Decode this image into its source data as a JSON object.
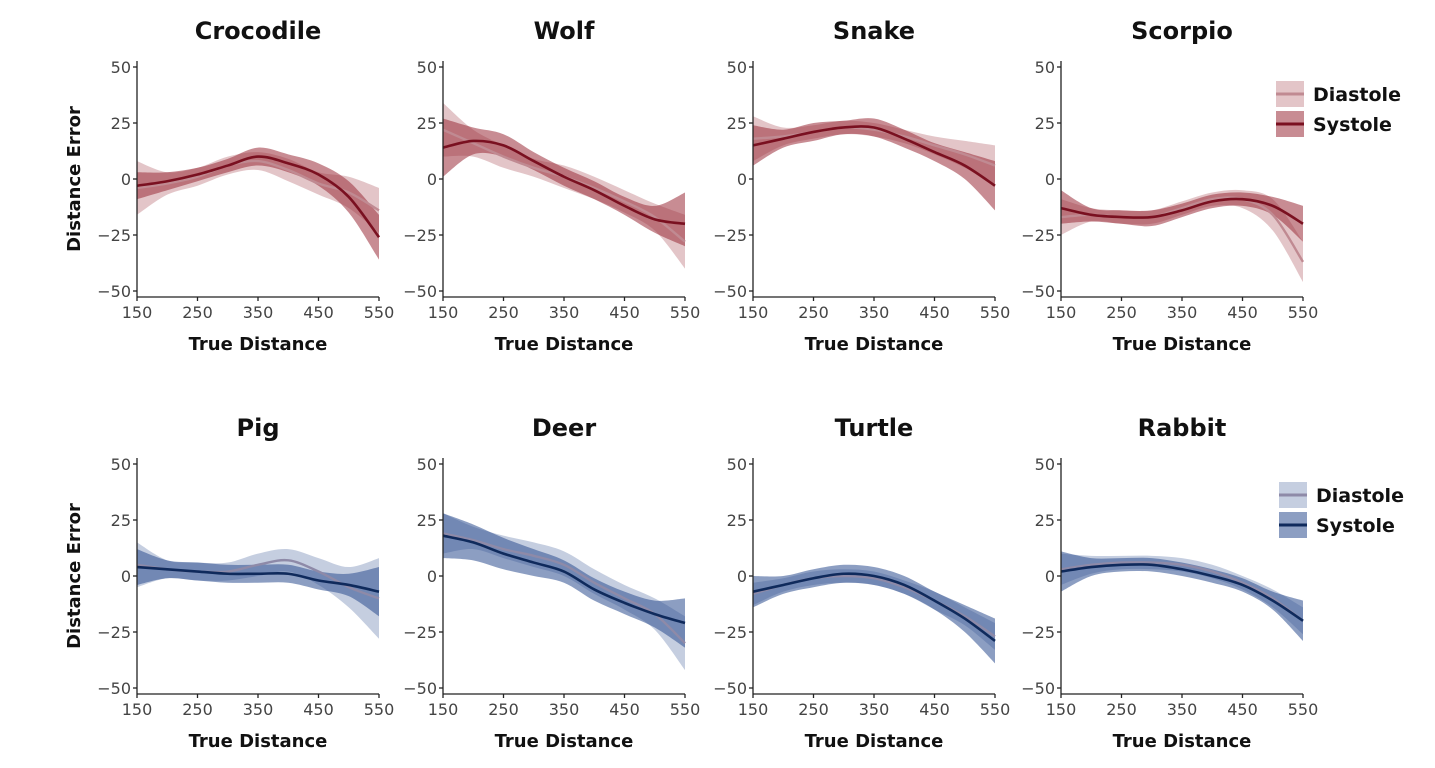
{
  "colors": {
    "red_systole_line": "#7a1020",
    "red_diastole_line": "#c08a92",
    "red_band": "#9b2e3a",
    "blue_systole_line": "#0f2a5c",
    "blue_diastole_line": "#8e8aa8",
    "blue_band": "#2e4f8f"
  },
  "legends": [
    {
      "row": 0,
      "palette": "red",
      "entries": [
        "Diastole",
        "Systole"
      ]
    },
    {
      "row": 1,
      "palette": "blue",
      "entries": [
        "Diastole",
        "Systole"
      ]
    }
  ],
  "chart_data": [
    {
      "type": "line",
      "title": "Crocodile",
      "row": 0,
      "palette": "red",
      "xlabel": "True Distance",
      "ylabel": "Distance Error",
      "xlim": [
        150,
        550
      ],
      "ylim": [
        -50,
        50
      ],
      "xticks": [
        150,
        250,
        350,
        450,
        550
      ],
      "yticks": [
        50,
        25,
        0,
        -25,
        -50
      ],
      "x": [
        150,
        200,
        250,
        300,
        350,
        400,
        450,
        500,
        550
      ],
      "series": [
        {
          "name": "Diastole",
          "mean": [
            -4,
            -2,
            1,
            6,
            8,
            4,
            -2,
            -6,
            -14
          ],
          "lower": [
            -16,
            -7,
            -3,
            2,
            4,
            -1,
            -7,
            -13,
            -24
          ],
          "upper": [
            8,
            3,
            5,
            10,
            12,
            9,
            3,
            1,
            -4
          ]
        },
        {
          "name": "Systole",
          "mean": [
            -3,
            -1,
            2,
            6,
            10,
            7,
            2,
            -8,
            -26
          ],
          "lower": [
            -9,
            -5,
            -1,
            3,
            6,
            3,
            -3,
            -15,
            -36
          ],
          "upper": [
            3,
            3,
            5,
            9,
            14,
            11,
            7,
            -1,
            -16
          ]
        }
      ]
    },
    {
      "type": "line",
      "title": "Wolf",
      "row": 0,
      "palette": "red",
      "xlabel": "True Distance",
      "ylabel": "",
      "xlim": [
        150,
        550
      ],
      "ylim": [
        -50,
        50
      ],
      "xticks": [
        150,
        250,
        350,
        450,
        550
      ],
      "yticks": [
        50,
        25,
        0,
        -25,
        -50
      ],
      "x": [
        150,
        200,
        250,
        300,
        350,
        400,
        450,
        500,
        550
      ],
      "series": [
        {
          "name": "Diastole",
          "mean": [
            22,
            16,
            10,
            5,
            1,
            -4,
            -10,
            -17,
            -28
          ],
          "lower": [
            10,
            10,
            5,
            1,
            -4,
            -9,
            -15,
            -23,
            -40
          ],
          "upper": [
            34,
            22,
            15,
            9,
            6,
            1,
            -5,
            -11,
            -16
          ]
        },
        {
          "name": "Systole",
          "mean": [
            14,
            17,
            15,
            8,
            1,
            -5,
            -12,
            -18,
            -20
          ],
          "lower": [
            1,
            11,
            10,
            4,
            -3,
            -9,
            -16,
            -24,
            -30
          ],
          "upper": [
            27,
            23,
            20,
            12,
            5,
            -1,
            -8,
            -12,
            -6
          ]
        }
      ]
    },
    {
      "type": "line",
      "title": "Snake",
      "row": 0,
      "palette": "red",
      "xlabel": "True Distance",
      "ylabel": "",
      "xlim": [
        150,
        550
      ],
      "ylim": [
        -50,
        50
      ],
      "xticks": [
        150,
        250,
        350,
        450,
        550
      ],
      "yticks": [
        50,
        25,
        0,
        -25,
        -50
      ],
      "x": [
        150,
        200,
        250,
        300,
        350,
        400,
        450,
        500,
        550
      ],
      "series": [
        {
          "name": "Diastole",
          "mean": [
            18,
            19,
            21,
            23,
            22,
            19,
            15,
            11,
            6
          ],
          "lower": [
            8,
            15,
            18,
            20,
            19,
            16,
            11,
            5,
            -3
          ],
          "upper": [
            28,
            23,
            24,
            26,
            25,
            22,
            19,
            17,
            15
          ]
        },
        {
          "name": "Systole",
          "mean": [
            15,
            18,
            21,
            23,
            23,
            18,
            12,
            6,
            -3
          ],
          "lower": [
            6,
            14,
            17,
            20,
            19,
            14,
            8,
            0,
            -14
          ],
          "upper": [
            24,
            22,
            25,
            26,
            27,
            22,
            16,
            12,
            8
          ]
        }
      ]
    },
    {
      "type": "line",
      "title": "Scorpio",
      "row": 0,
      "palette": "red",
      "xlabel": "True Distance",
      "ylabel": "",
      "xlim": [
        150,
        550
      ],
      "ylim": [
        -50,
        50
      ],
      "xticks": [
        150,
        250,
        350,
        450,
        550
      ],
      "yticks": [
        50,
        25,
        0,
        -25,
        -50
      ],
      "x": [
        150,
        200,
        250,
        300,
        350,
        400,
        450,
        500,
        550
      ],
      "series": [
        {
          "name": "Diastole",
          "mean": [
            -17,
            -16,
            -17,
            -17,
            -13,
            -9,
            -9,
            -16,
            -37
          ],
          "lower": [
            -25,
            -19,
            -20,
            -20,
            -16,
            -12,
            -13,
            -23,
            -46
          ],
          "upper": [
            -9,
            -13,
            -14,
            -14,
            -10,
            -6,
            -5,
            -9,
            -28
          ]
        },
        {
          "name": "Systole",
          "mean": [
            -13,
            -16,
            -17,
            -17,
            -14,
            -10,
            -9,
            -12,
            -20
          ],
          "lower": [
            -20,
            -19,
            -20,
            -21,
            -17,
            -13,
            -12,
            -16,
            -28
          ],
          "upper": [
            -5,
            -13,
            -14,
            -14,
            -11,
            -7,
            -6,
            -8,
            -12
          ]
        }
      ]
    },
    {
      "type": "line",
      "title": "Pig",
      "row": 1,
      "palette": "blue",
      "xlabel": "True Distance",
      "ylabel": "Distance Error",
      "xlim": [
        150,
        550
      ],
      "ylim": [
        -50,
        50
      ],
      "xticks": [
        150,
        250,
        350,
        450,
        550
      ],
      "yticks": [
        50,
        25,
        0,
        -25,
        -50
      ],
      "x": [
        150,
        200,
        250,
        300,
        350,
        400,
        450,
        500,
        550
      ],
      "series": [
        {
          "name": "Diastole",
          "mean": [
            5,
            3,
            2,
            2,
            5,
            7,
            2,
            -5,
            -10
          ],
          "lower": [
            -5,
            -1,
            -2,
            -2,
            0,
            2,
            -4,
            -14,
            -28
          ],
          "upper": [
            15,
            7,
            6,
            6,
            10,
            12,
            8,
            4,
            8
          ]
        },
        {
          "name": "Systole",
          "mean": [
            4,
            3,
            2,
            1,
            1,
            1,
            -2,
            -4,
            -7
          ],
          "lower": [
            -4,
            -1,
            -2,
            -3,
            -3,
            -3,
            -6,
            -9,
            -18
          ],
          "upper": [
            12,
            7,
            6,
            5,
            5,
            5,
            2,
            1,
            4
          ]
        }
      ]
    },
    {
      "type": "line",
      "title": "Deer",
      "row": 1,
      "palette": "blue",
      "xlabel": "True Distance",
      "ylabel": "",
      "xlim": [
        150,
        550
      ],
      "ylim": [
        -50,
        50
      ],
      "xticks": [
        150,
        250,
        350,
        450,
        550
      ],
      "yticks": [
        50,
        25,
        0,
        -25,
        -50
      ],
      "x": [
        150,
        200,
        250,
        300,
        350,
        400,
        450,
        500,
        550
      ],
      "series": [
        {
          "name": "Diastole",
          "mean": [
            19,
            16,
            12,
            9,
            5,
            -3,
            -10,
            -17,
            -30
          ],
          "lower": [
            10,
            12,
            8,
            4,
            0,
            -8,
            -15,
            -24,
            -42
          ],
          "upper": [
            28,
            22,
            18,
            15,
            11,
            3,
            -4,
            -10,
            -18
          ]
        },
        {
          "name": "Systole",
          "mean": [
            18,
            15,
            10,
            6,
            2,
            -6,
            -12,
            -17,
            -21
          ],
          "lower": [
            8,
            7,
            3,
            0,
            -3,
            -11,
            -17,
            -23,
            -32
          ],
          "upper": [
            28,
            23,
            17,
            12,
            7,
            -1,
            -7,
            -11,
            -10
          ]
        }
      ]
    },
    {
      "type": "line",
      "title": "Turtle",
      "row": 1,
      "palette": "blue",
      "xlabel": "True Distance",
      "ylabel": "",
      "xlim": [
        150,
        550
      ],
      "ylim": [
        -50,
        50
      ],
      "xticks": [
        150,
        250,
        350,
        450,
        550
      ],
      "yticks": [
        50,
        25,
        0,
        -25,
        -50
      ],
      "x": [
        150,
        200,
        250,
        300,
        350,
        400,
        450,
        500,
        550
      ],
      "series": [
        {
          "name": "Diastole",
          "mean": [
            -8,
            -4,
            -1,
            0,
            -1,
            -5,
            -11,
            -18,
            -27
          ],
          "lower": [
            -13,
            -7,
            -4,
            -3,
            -4,
            -8,
            -15,
            -22,
            -33
          ],
          "upper": [
            -3,
            -1,
            2,
            3,
            2,
            -2,
            -7,
            -14,
            -21
          ]
        },
        {
          "name": "Systole",
          "mean": [
            -7,
            -4,
            -1,
            1,
            0,
            -4,
            -11,
            -19,
            -29
          ],
          "lower": [
            -14,
            -8,
            -5,
            -3,
            -4,
            -8,
            -15,
            -25,
            -39
          ],
          "upper": [
            0,
            0,
            3,
            5,
            4,
            0,
            -7,
            -13,
            -19
          ]
        }
      ]
    },
    {
      "type": "line",
      "title": "Rabbit",
      "row": 1,
      "palette": "blue",
      "xlabel": "True Distance",
      "ylabel": "",
      "xlim": [
        150,
        550
      ],
      "ylim": [
        -50,
        50
      ],
      "xticks": [
        150,
        250,
        350,
        450,
        550
      ],
      "yticks": [
        50,
        25,
        0,
        -25,
        -50
      ],
      "x": [
        150,
        200,
        250,
        300,
        350,
        400,
        450,
        500,
        550
      ],
      "series": [
        {
          "name": "Diastole",
          "mean": [
            3,
            5,
            6,
            6,
            5,
            2,
            -3,
            -10,
            -20
          ],
          "lower": [
            -4,
            1,
            3,
            3,
            2,
            -1,
            -6,
            -14,
            -26
          ],
          "upper": [
            10,
            9,
            9,
            9,
            8,
            5,
            0,
            -6,
            -14
          ]
        },
        {
          "name": "Systole",
          "mean": [
            2,
            4,
            5,
            5,
            3,
            0,
            -4,
            -11,
            -20
          ],
          "lower": [
            -7,
            0,
            2,
            2,
            0,
            -3,
            -7,
            -15,
            -29
          ],
          "upper": [
            11,
            8,
            8,
            8,
            6,
            3,
            -1,
            -7,
            -11
          ]
        }
      ]
    }
  ]
}
